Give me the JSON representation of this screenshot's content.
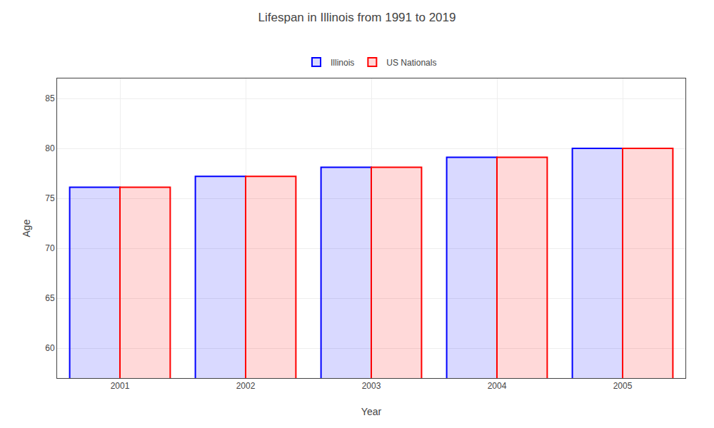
{
  "chart_data": {
    "type": "bar",
    "title": "Lifespan in Illinois from 1991 to 2019",
    "xlabel": "Year",
    "ylabel": "Age",
    "categories": [
      "2001",
      "2002",
      "2003",
      "2004",
      "2005"
    ],
    "series": [
      {
        "name": "Illinois",
        "color": "#0000ff",
        "values": [
          76.1,
          77.2,
          78.1,
          79.1,
          80.0
        ]
      },
      {
        "name": "US Nationals",
        "color": "#ff0000",
        "values": [
          76.1,
          77.2,
          78.1,
          79.1,
          80.0
        ]
      }
    ],
    "ylim": [
      57,
      87
    ],
    "yticks": [
      60,
      65,
      70,
      75,
      80,
      85
    ],
    "grid": true,
    "legend": "top"
  }
}
